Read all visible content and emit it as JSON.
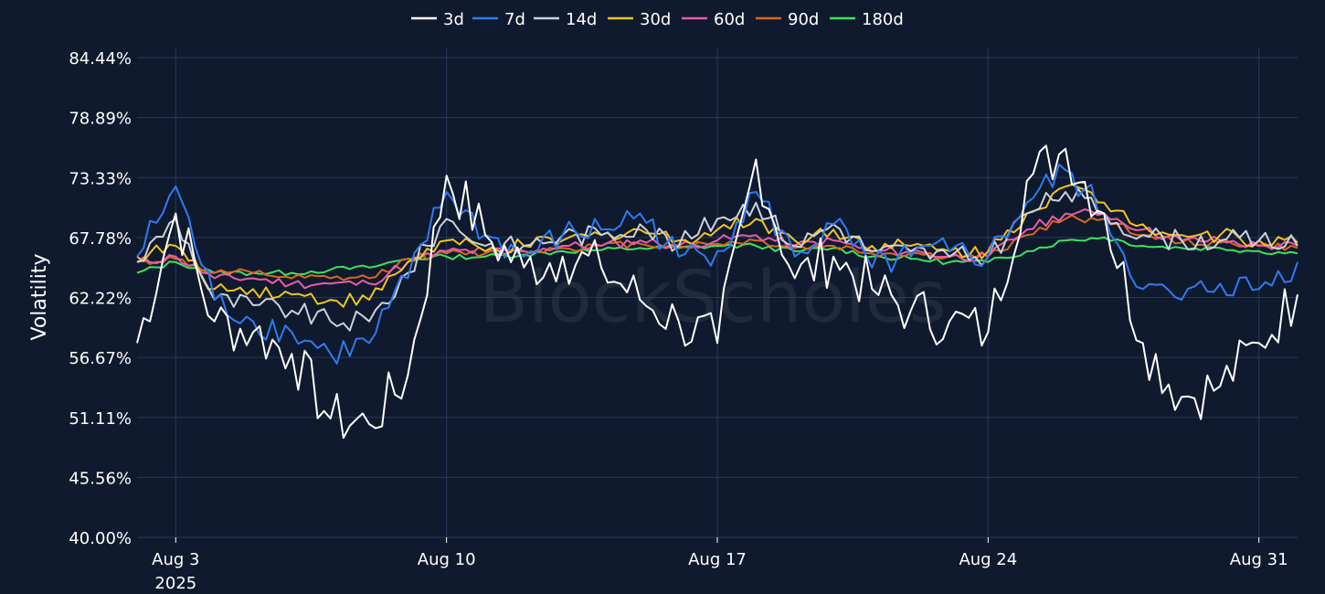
{
  "watermark": "BlockScholes",
  "chart_data": {
    "type": "line",
    "title": "",
    "xlabel": "",
    "ylabel": "Volatility",
    "ylim": [
      40.0,
      84.44
    ],
    "yticks": [
      "40.00%",
      "45.56%",
      "51.11%",
      "56.67%",
      "62.22%",
      "67.78%",
      "73.33%",
      "78.89%",
      "84.44%"
    ],
    "xlim": [
      "2025-08-02",
      "2025-09-01"
    ],
    "xticks": [
      {
        "date": "2025-08-03",
        "label": "Aug 3",
        "sublabel": "2025"
      },
      {
        "date": "2025-08-10",
        "label": "Aug 10",
        "sublabel": ""
      },
      {
        "date": "2025-08-17",
        "label": "Aug 17",
        "sublabel": ""
      },
      {
        "date": "2025-08-24",
        "label": "Aug 24",
        "sublabel": ""
      },
      {
        "date": "2025-08-31",
        "label": "Aug 31",
        "sublabel": ""
      }
    ],
    "grid": true,
    "legend_position": "top-center",
    "x": [
      "2025-08-02",
      "2025-08-03",
      "2025-08-04",
      "2025-08-05",
      "2025-08-06",
      "2025-08-07",
      "2025-08-08",
      "2025-08-09",
      "2025-08-10",
      "2025-08-11",
      "2025-08-12",
      "2025-08-13",
      "2025-08-14",
      "2025-08-15",
      "2025-08-16",
      "2025-08-17",
      "2025-08-18",
      "2025-08-19",
      "2025-08-20",
      "2025-08-21",
      "2025-08-22",
      "2025-08-23",
      "2025-08-24",
      "2025-08-25",
      "2025-08-26",
      "2025-08-27",
      "2025-08-28",
      "2025-08-29",
      "2025-08-30",
      "2025-08-31",
      "2025-09-01"
    ],
    "series": [
      {
        "name": "3d",
        "color": "#ffffff",
        "values": [
          58.0,
          70.0,
          60.0,
          59.0,
          57.0,
          51.0,
          50.5,
          55.0,
          73.5,
          68.0,
          65.0,
          66.0,
          65.0,
          62.0,
          60.0,
          58.0,
          75.0,
          64.0,
          66.0,
          63.0,
          61.0,
          60.0,
          59.0,
          73.0,
          76.0,
          70.0,
          58.0,
          53.0,
          54.0,
          58.0,
          62.5
        ]
      },
      {
        "name": "7d",
        "color": "#2f7bf0",
        "values": [
          66.0,
          72.5,
          62.0,
          60.0,
          59.0,
          57.0,
          58.0,
          64.0,
          72.0,
          68.0,
          66.0,
          68.0,
          68.5,
          70.0,
          66.0,
          66.5,
          72.0,
          66.0,
          69.0,
          65.0,
          66.0,
          66.5,
          66.0,
          71.0,
          74.0,
          70.0,
          63.0,
          62.0,
          63.5,
          63.0,
          65.5
        ]
      },
      {
        "name": "14d",
        "color": "#cbd2dc",
        "values": [
          65.5,
          69.5,
          62.0,
          61.5,
          61.0,
          60.0,
          60.0,
          64.5,
          69.5,
          67.0,
          67.0,
          68.0,
          68.0,
          69.0,
          67.0,
          69.5,
          71.0,
          67.0,
          69.0,
          66.5,
          66.5,
          66.0,
          66.0,
          70.0,
          72.0,
          70.0,
          68.0,
          67.5,
          67.5,
          67.5,
          67.0
        ]
      },
      {
        "name": "30d",
        "color": "#f2c31f",
        "values": [
          66.0,
          67.0,
          63.0,
          63.0,
          62.5,
          62.0,
          62.0,
          65.5,
          67.5,
          66.5,
          67.0,
          67.5,
          68.0,
          68.5,
          67.5,
          68.5,
          69.5,
          67.5,
          68.5,
          67.0,
          67.0,
          66.5,
          66.5,
          70.0,
          72.5,
          71.0,
          69.0,
          68.0,
          68.0,
          67.5,
          67.3
        ]
      },
      {
        "name": "60d",
        "color": "#ee5aa8",
        "values": [
          65.5,
          66.0,
          64.0,
          64.0,
          63.5,
          63.5,
          63.5,
          65.5,
          66.5,
          66.5,
          66.5,
          67.0,
          67.0,
          67.5,
          67.0,
          67.5,
          68.0,
          67.0,
          67.5,
          66.5,
          66.5,
          66.0,
          66.0,
          68.5,
          70.0,
          70.0,
          68.5,
          67.5,
          67.5,
          67.0,
          67.0
        ]
      },
      {
        "name": "90d",
        "color": "#d8691e",
        "values": [
          65.5,
          65.8,
          64.5,
          64.5,
          64.0,
          64.0,
          64.0,
          65.8,
          66.3,
          66.3,
          66.5,
          66.8,
          67.0,
          67.2,
          67.0,
          67.2,
          67.5,
          66.8,
          67.0,
          66.3,
          66.3,
          66.0,
          66.0,
          68.0,
          69.5,
          69.5,
          68.0,
          67.3,
          67.3,
          67.0,
          66.8
        ]
      },
      {
        "name": "180d",
        "color": "#3ee25e",
        "values": [
          64.5,
          65.5,
          64.5,
          64.5,
          64.5,
          64.8,
          65.0,
          65.8,
          66.0,
          66.0,
          66.2,
          66.5,
          66.6,
          66.8,
          66.8,
          67.0,
          67.0,
          66.5,
          66.8,
          66.0,
          65.8,
          65.5,
          65.5,
          66.5,
          67.5,
          67.8,
          67.0,
          66.8,
          66.8,
          66.5,
          66.3
        ]
      }
    ]
  }
}
